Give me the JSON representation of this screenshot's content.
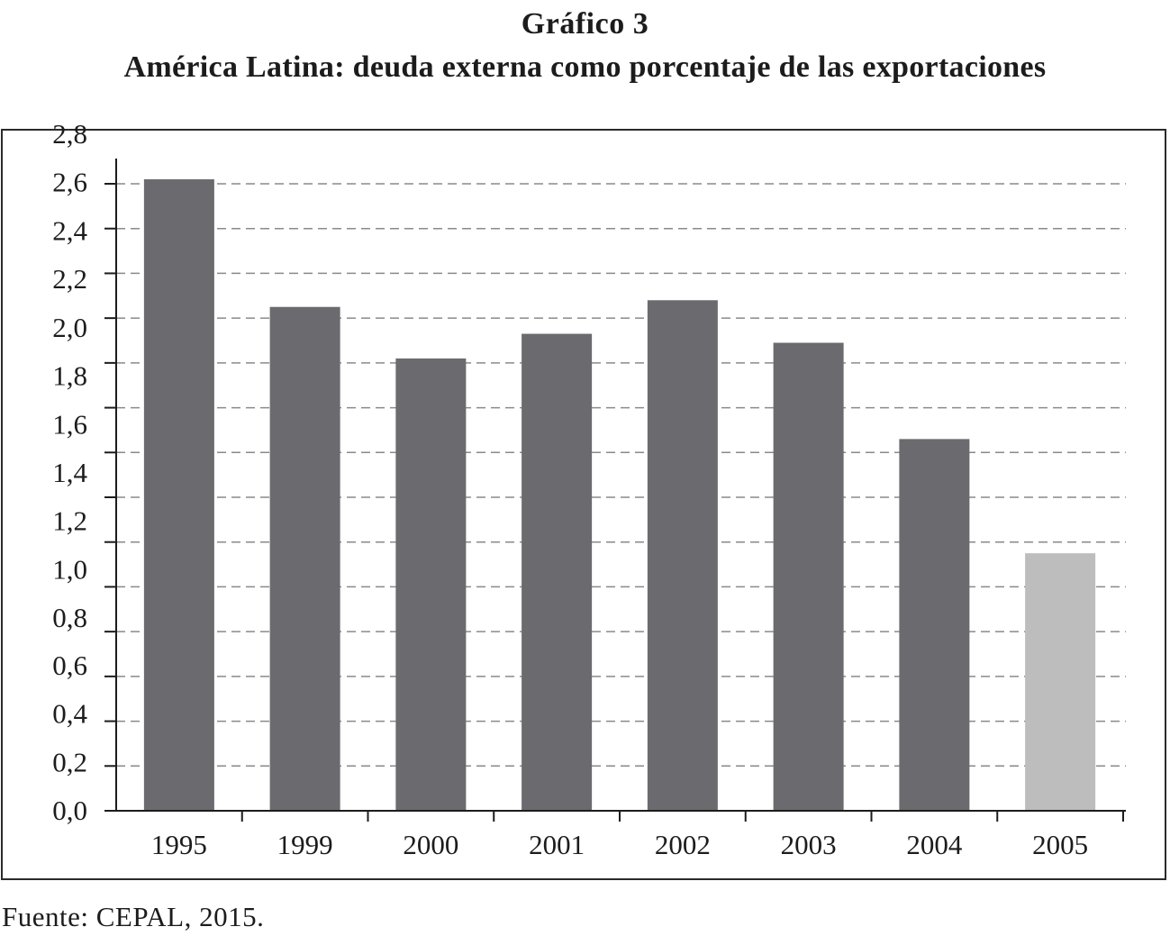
{
  "figure": {
    "number": "Gráfico 3",
    "title": "América Latina: deuda externa como porcentaje de las exportaciones",
    "source": "Fuente: CEPAL, 2015."
  },
  "chart_data": {
    "type": "bar",
    "categories": [
      "1995",
      "1999",
      "2000",
      "2001",
      "2002",
      "2003",
      "2004",
      "2005"
    ],
    "values": [
      2.82,
      2.25,
      2.02,
      2.13,
      2.28,
      2.09,
      1.66,
      1.15
    ],
    "bar_colors": [
      "#6b6b6f",
      "#6b6b6f",
      "#6b6b6f",
      "#6b6b6f",
      "#6b6b6f",
      "#6b6b6f",
      "#6b6b6f",
      "#bdbdbd"
    ],
    "ylim": [
      0,
      2.8
    ],
    "yticks": [
      "0,0",
      "0,2",
      "0,4",
      "0,6",
      "0,8",
      "1,0",
      "1,2",
      "1,4",
      "1,6",
      "1,8",
      "2,0",
      "2,2",
      "2,4",
      "2,6",
      "2,8"
    ],
    "grid": "horizontal dashed",
    "xlabel": "",
    "ylabel": ""
  }
}
